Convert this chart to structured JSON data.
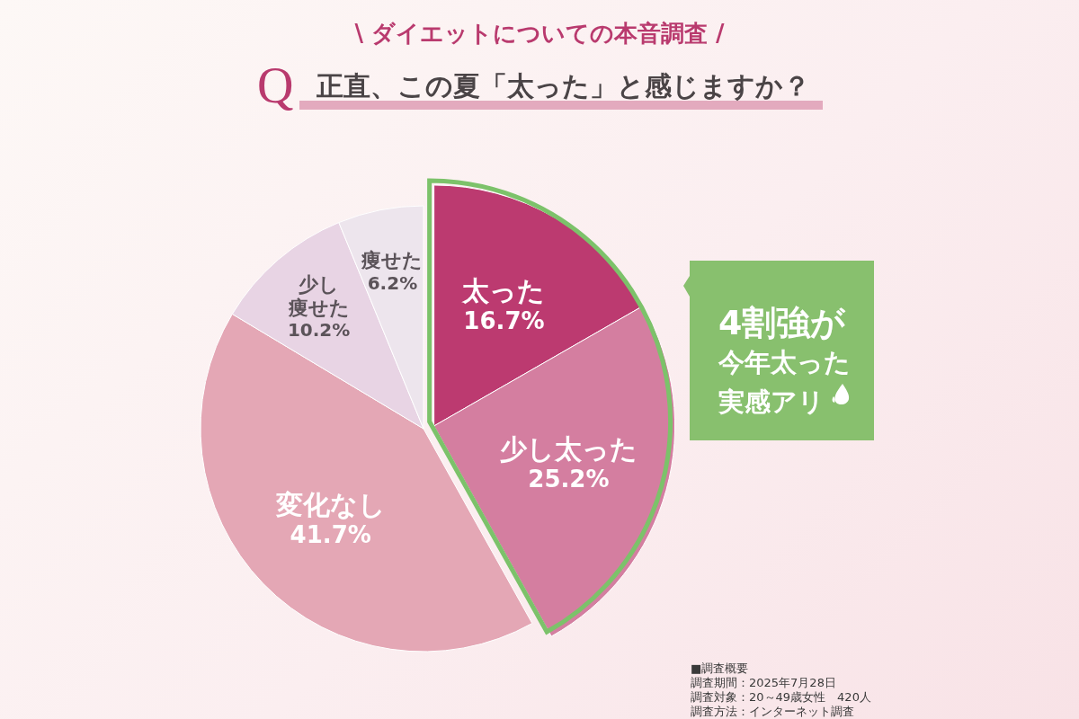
{
  "chart_data": {
    "type": "pie",
    "title": "\\ ダイエットについての本音調査 /",
    "subtitle": "Q 正直、この夏「太った」と感じますか？",
    "categories": [
      "太った",
      "少し太った",
      "変化なし",
      "少し痩せた",
      "痩せた"
    ],
    "values": [
      16.7,
      25.2,
      41.7,
      10.2,
      6.2
    ],
    "value_labels": [
      "16.7%",
      "25.2%",
      "41.7%",
      "10.2%",
      "6.2%"
    ],
    "colors": [
      "#bc3a70",
      "#d47ea0",
      "#e4a7b5",
      "#e8d4e4",
      "#ede5ed"
    ],
    "annotations": [
      "4割強が",
      "今年太った",
      "実感アリ",
      "■調査概要",
      "調査期間：2025年7月28日",
      "調査対象：20～49歳女性　420人",
      "調査方法：インターネット調査"
    ]
  }
}
